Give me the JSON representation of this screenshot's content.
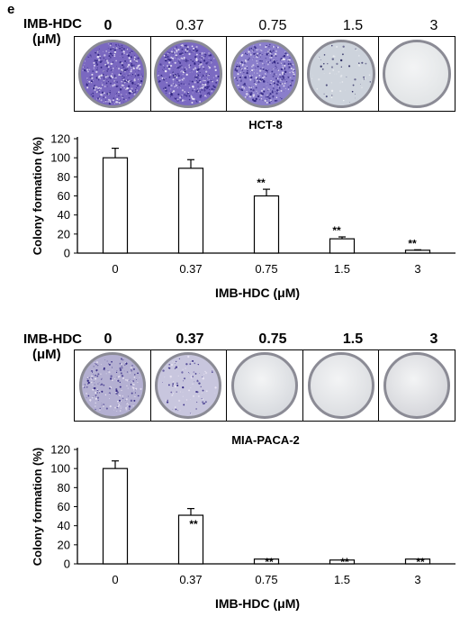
{
  "panel_label": "e",
  "top": {
    "dose_label_line1": "IMB-HDC",
    "dose_label_line2": "(μM)",
    "concentrations": [
      "0",
      "0.37",
      "0.75",
      "1.5",
      "3"
    ],
    "plates": [
      {
        "fill": "#7a68c0",
        "density": "dense"
      },
      {
        "fill": "#7b6ac2",
        "density": "dense"
      },
      {
        "fill": "#8a7ecb",
        "density": "dense"
      },
      {
        "fill": "#cdd3dc",
        "density": "sparse"
      },
      {
        "fill": "#dfe2e4",
        "density": "none"
      }
    ]
  },
  "bottom": {
    "dose_label_line1": "IMB-HDC",
    "dose_label_line2": "(μM)",
    "concentrations": [
      "0",
      "0.37",
      "0.75",
      "1.5",
      "3"
    ],
    "plates": [
      {
        "fill": "#b4b0d2",
        "density": "medium"
      },
      {
        "fill": "#c8c6de",
        "density": "light"
      },
      {
        "fill": "#d4d7dc",
        "density": "none"
      },
      {
        "fill": "#d9dbdf",
        "density": "none"
      },
      {
        "fill": "#d2d3d8",
        "density": "none"
      }
    ]
  },
  "chart_data": [
    {
      "type": "bar",
      "title": "HCT-8",
      "xlabel": "IMB-HDC (μM)",
      "ylabel": "Colony formation (%)",
      "categories": [
        "0",
        "0.37",
        "0.75",
        "1.5",
        "3"
      ],
      "values": [
        100,
        89,
        60,
        15,
        3
      ],
      "errors": [
        10,
        9,
        7,
        2,
        0.5
      ],
      "significance": [
        "",
        "",
        "**",
        "**",
        "**"
      ],
      "ylim": [
        0,
        120
      ],
      "yticks": [
        0,
        20,
        40,
        60,
        80,
        100,
        120
      ]
    },
    {
      "type": "bar",
      "title": "MIA-PACA-2",
      "xlabel": "IMB-HDC (μM)",
      "ylabel": "Colony formation (%)",
      "categories": [
        "0",
        "0.37",
        "0.75",
        "1.5",
        "3"
      ],
      "values": [
        100,
        51,
        5,
        4,
        5
      ],
      "errors": [
        8,
        7,
        0,
        0,
        0
      ],
      "significance": [
        "",
        "**",
        "**",
        "**",
        "**"
      ],
      "ylim": [
        0,
        120
      ],
      "yticks": [
        0,
        20,
        40,
        60,
        80,
        100,
        120
      ]
    }
  ]
}
